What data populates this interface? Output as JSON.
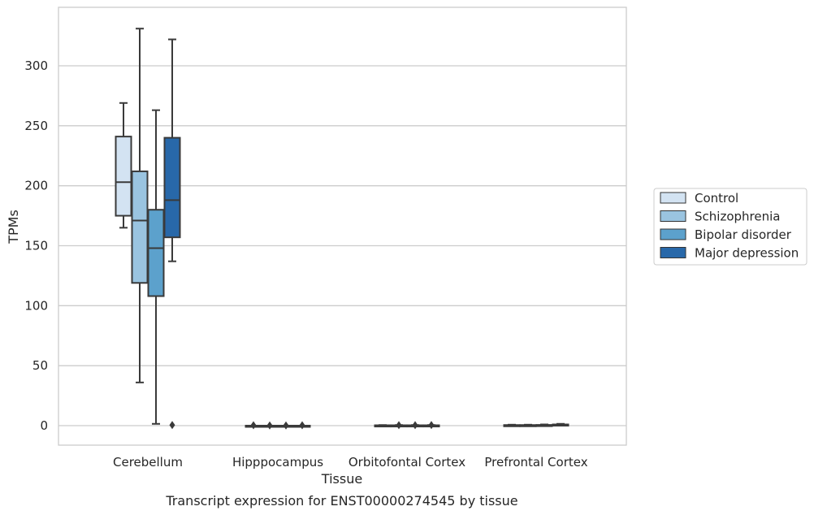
{
  "chart_data": {
    "type": "box",
    "xlabel": "Tissue",
    "ylabel": "TPMs",
    "caption": "Transcript expression for ENST00000274545 by tissue",
    "ylim": [
      -16,
      347
    ],
    "yticks": [
      0,
      50,
      100,
      150,
      200,
      250,
      300
    ],
    "grid": "horizontal",
    "legend_position": "right",
    "categories": [
      "Cerebellum",
      "Hipppocampus",
      "Orbitofontal Cortex",
      "Prefrontal Cortex"
    ],
    "series": [
      {
        "name": "Control",
        "color": "#d3e3f2",
        "boxes": [
          {
            "min": 165,
            "q1": 175,
            "median": 203,
            "q3": 241,
            "max": 269,
            "fliers": []
          },
          {
            "min": 0,
            "q1": 0,
            "median": 0,
            "q3": 0,
            "max": 0,
            "fliers": [
              0.3
            ]
          },
          {
            "min": 0,
            "q1": 0,
            "median": 0.1,
            "q3": 0.3,
            "max": 0.5,
            "fliers": []
          },
          {
            "min": 0,
            "q1": 0,
            "median": 0.2,
            "q3": 0.5,
            "max": 0.8,
            "fliers": []
          }
        ]
      },
      {
        "name": "Schizophrenia",
        "color": "#9ac4e0",
        "boxes": [
          {
            "min": 36,
            "q1": 119,
            "median": 171,
            "q3": 212,
            "max": 331,
            "fliers": []
          },
          {
            "min": 0,
            "q1": 0,
            "median": 0,
            "q3": 0,
            "max": 0,
            "fliers": [
              0.2
            ]
          },
          {
            "min": 0,
            "q1": 0,
            "median": 0.1,
            "q3": 0.3,
            "max": 0.5,
            "fliers": [
              0.4
            ]
          },
          {
            "min": 0,
            "q1": 0,
            "median": 0.2,
            "q3": 0.5,
            "max": 0.8,
            "fliers": []
          }
        ]
      },
      {
        "name": "Bipolar disorder",
        "color": "#5ca1cc",
        "boxes": [
          {
            "min": 1.5,
            "q1": 108,
            "median": 148,
            "q3": 180,
            "max": 263,
            "fliers": []
          },
          {
            "min": 0,
            "q1": 0,
            "median": 0,
            "q3": 0,
            "max": 0,
            "fliers": [
              0.2
            ]
          },
          {
            "min": 0,
            "q1": 0,
            "median": 0.1,
            "q3": 0.3,
            "max": 0.5,
            "fliers": [
              0.4
            ]
          },
          {
            "min": 0,
            "q1": 0,
            "median": 0.2,
            "q3": 0.6,
            "max": 1.0,
            "fliers": []
          }
        ]
      },
      {
        "name": "Major depression",
        "color": "#2868a9",
        "boxes": [
          {
            "min": 137,
            "q1": 157,
            "median": 188,
            "q3": 240,
            "max": 322,
            "fliers": [
              0.5
            ]
          },
          {
            "min": 0,
            "q1": 0,
            "median": 0,
            "q3": 0,
            "max": 0,
            "fliers": [
              0.3
            ]
          },
          {
            "min": 0,
            "q1": 0,
            "median": 0.1,
            "q3": 0.3,
            "max": 0.5,
            "fliers": [
              0.5
            ]
          },
          {
            "min": 0,
            "q1": 0.3,
            "median": 0.6,
            "q3": 1.0,
            "max": 1.5,
            "fliers": []
          }
        ]
      }
    ]
  }
}
